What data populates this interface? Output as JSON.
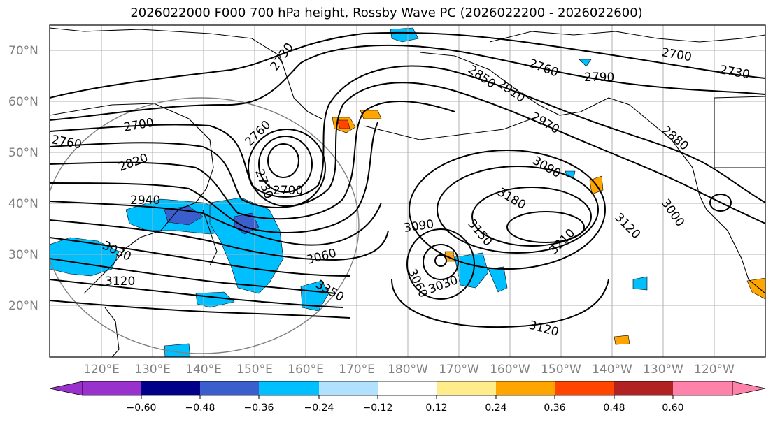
{
  "title": "2026022000 F000 700 hPa height, Rossby Wave PC (2026022200 - 2026022600)",
  "lat_labels": [
    "70°N",
    "60°N",
    "50°N",
    "40°N",
    "30°N",
    "20°N"
  ],
  "lon_labels": [
    "120°E",
    "130°E",
    "140°E",
    "150°E",
    "160°E",
    "170°E",
    "180°W",
    "170°W",
    "160°W",
    "150°W",
    "140°W",
    "130°W",
    "120°W"
  ],
  "colorbar": {
    "ticks": [
      "−0.60",
      "−0.48",
      "−0.36",
      "−0.24",
      "−0.12",
      "0.12",
      "0.24",
      "0.36",
      "0.48",
      "0.60"
    ],
    "colors": [
      "#9932cc",
      "#00008b",
      "#3a5fcd",
      "#00bfff",
      "#b0e2ff",
      "#ffffff",
      "#ffec8b",
      "#ffa500",
      "#ff4500",
      "#b22222",
      "#ff82ab",
      "#ff82ab"
    ]
  },
  "contour_labels": [
    {
      "text": "2730"
    },
    {
      "text": "2700"
    },
    {
      "text": "2760"
    },
    {
      "text": "2820"
    },
    {
      "text": "2940"
    },
    {
      "text": "3030"
    },
    {
      "text": "3120"
    },
    {
      "text": "2760"
    },
    {
      "text": "2730"
    },
    {
      "text": "2700"
    },
    {
      "text": "2850"
    },
    {
      "text": "2910"
    },
    {
      "text": "2970"
    },
    {
      "text": "2760"
    },
    {
      "text": "2790"
    },
    {
      "text": "2700"
    },
    {
      "text": "2730"
    },
    {
      "text": "2880"
    },
    {
      "text": "3090"
    },
    {
      "text": "3180"
    },
    {
      "text": "3120"
    },
    {
      "text": "3000"
    },
    {
      "text": "3060"
    },
    {
      "text": "3350"
    },
    {
      "text": "3090"
    },
    {
      "text": "3150"
    },
    {
      "text": "3210"
    },
    {
      "text": "3060"
    },
    {
      "text": "3030"
    },
    {
      "text": "3120"
    }
  ]
}
